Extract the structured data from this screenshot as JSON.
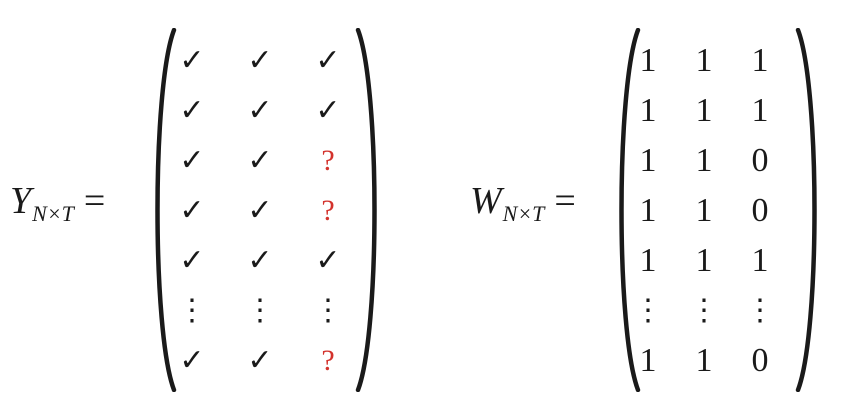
{
  "equations": [
    {
      "id": "y",
      "symbol": "Y",
      "subscript": "N×T",
      "equals": "=",
      "rows": [
        [
          "✓",
          "✓",
          "✓"
        ],
        [
          "✓",
          "✓",
          "✓"
        ],
        [
          "✓",
          "✓",
          "?"
        ],
        [
          "✓",
          "✓",
          "?"
        ],
        [
          "✓",
          "✓",
          "✓"
        ],
        [
          "⋮",
          "⋮",
          "⋮"
        ],
        [
          "✓",
          "✓",
          "?"
        ]
      ]
    },
    {
      "id": "w",
      "symbol": "W",
      "subscript": "N×T",
      "equals": "=",
      "rows": [
        [
          "1",
          "1",
          "1"
        ],
        [
          "1",
          "1",
          "1"
        ],
        [
          "1",
          "1",
          "0"
        ],
        [
          "1",
          "1",
          "0"
        ],
        [
          "1",
          "1",
          "1"
        ],
        [
          "⋮",
          "⋮",
          "⋮"
        ],
        [
          "1",
          "1",
          "0"
        ]
      ]
    }
  ],
  "colors": {
    "text": "#1a1a1a",
    "unknown": "#d3322c"
  }
}
